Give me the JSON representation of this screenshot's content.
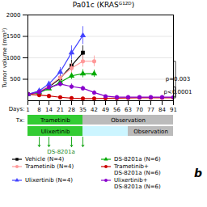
{
  "chart_data": {
    "type": "line",
    "title": "Pa01c (KRASᴳ¹²ᴰ)",
    "ylabel": "Tumor volume (mm³)",
    "xlabel": "Days:",
    "xlim": [
      1,
      91
    ],
    "xticks": [
      1,
      8,
      14,
      21,
      28,
      35,
      42,
      49,
      56,
      63,
      70,
      77,
      84,
      91
    ],
    "ylim": [
      0,
      2000
    ],
    "yticks": [
      500,
      1000,
      1500,
      2000
    ],
    "grid": true,
    "series": [
      {
        "name": "Vehicle (N=4)",
        "color": "#000000",
        "marker": "square",
        "x": [
          1,
          8,
          14,
          21,
          28,
          35
        ],
        "values": [
          150,
          200,
          320,
          520,
          820,
          1120
        ],
        "errors": [
          20,
          30,
          50,
          90,
          130,
          160
        ]
      },
      {
        "name": "DS-8201a (N=6)",
        "color": "#00aa00",
        "marker": "triangle",
        "x": [
          1,
          8,
          14,
          21,
          28,
          35,
          42
        ],
        "values": [
          145,
          190,
          280,
          430,
          580,
          630,
          630
        ],
        "errors": [
          20,
          25,
          40,
          65,
          85,
          95,
          85
        ]
      },
      {
        "name": "Trametinib (N=4)",
        "color": "#ff9999",
        "marker": "circle",
        "x": [
          1,
          8,
          14,
          21,
          28,
          35,
          42
        ],
        "values": [
          150,
          210,
          340,
          540,
          760,
          920,
          920
        ],
        "errors": [
          20,
          30,
          55,
          85,
          115,
          135,
          125
        ]
      },
      {
        "name": "Trametinib+\nDS-8201a (N=6)",
        "color": "#cc0000",
        "marker": "circle",
        "x": [
          1,
          8,
          14,
          21,
          28,
          35,
          42,
          49,
          56,
          63,
          70,
          77,
          84,
          91
        ],
        "values": [
          150,
          130,
          110,
          80,
          60,
          50,
          50,
          55,
          60,
          65,
          70,
          70,
          70,
          70
        ],
        "errors": [
          20,
          15,
          15,
          12,
          10,
          8,
          8,
          8,
          8,
          8,
          8,
          8,
          8,
          8
        ]
      },
      {
        "name": "Ulixertinib (N=4)",
        "color": "#4444ff",
        "marker": "triangle",
        "x": [
          1,
          8,
          14,
          21,
          28,
          35
        ],
        "values": [
          150,
          230,
          390,
          670,
          1120,
          1520
        ],
        "errors": [
          20,
          35,
          65,
          105,
          160,
          210
        ]
      },
      {
        "name": "Ulixertinib+\nDS-8201a (N=6)",
        "color": "#8800cc",
        "marker": "circle",
        "x": [
          1,
          8,
          14,
          21,
          28,
          35,
          42,
          49,
          56,
          63,
          70,
          77,
          84,
          91
        ],
        "values": [
          150,
          200,
          310,
          390,
          330,
          290,
          190,
          105,
          82,
          82,
          82,
          82,
          82,
          82
        ],
        "errors": [
          20,
          30,
          52,
          62,
          62,
          52,
          42,
          22,
          15,
          15,
          15,
          15,
          15,
          15
        ]
      }
    ],
    "p_values": [
      {
        "text": "p=0.003",
        "y": 490,
        "y_top": 910,
        "y_bottom": 55
      },
      {
        "text": "p<0.0001",
        "y": 195,
        "y_top": 310,
        "y_bottom": 80
      }
    ],
    "treatment_label": "Tx:",
    "treatments": [
      {
        "segments": [
          {
            "start": 1,
            "end": 35,
            "label": "Trametinib",
            "color": "#33cc33"
          },
          {
            "start": 35,
            "end": 91,
            "label": "Observation",
            "color": "#bbbbbb"
          }
        ]
      },
      {
        "segments": [
          {
            "start": 1,
            "end": 35,
            "label": "Ulixertinib",
            "color": "#33cc33"
          },
          {
            "start": 35,
            "end": 63,
            "color": "#ccf5ff"
          },
          {
            "start": 63,
            "end": 91,
            "label": "Observation",
            "color": "#bbbbbb"
          }
        ]
      }
    ],
    "arrows": {
      "x": [
        8,
        14,
        28,
        35
      ],
      "label": "DS-8201a",
      "color": "#22aa22",
      "label_color": "#228822"
    },
    "panel_label": "b"
  }
}
